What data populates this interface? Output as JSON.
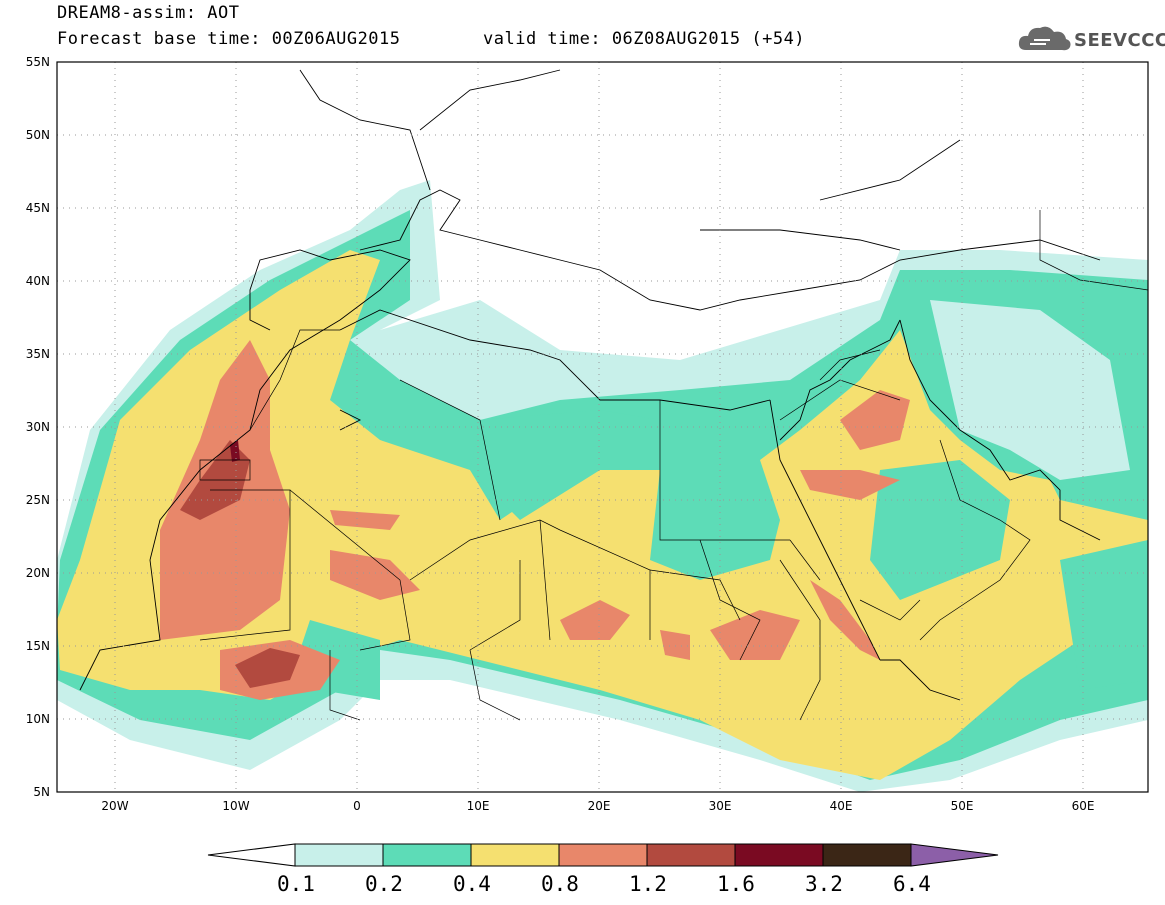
{
  "title": {
    "line1": "DREAM8-assim: AOT",
    "line2": "Forecast base time: 00Z06AUG2015",
    "valid": "valid time: 06Z08AUG2015 (+54)"
  },
  "logo": {
    "text": "SEEVCCC",
    "icon": "cloud-logo-icon"
  },
  "axes": {
    "lat_labels": [
      "55N",
      "50N",
      "45N",
      "40N",
      "35N",
      "30N",
      "25N",
      "20N",
      "15N",
      "10N",
      "5N"
    ],
    "lon_labels": [
      "20W",
      "10W",
      "0",
      "10E",
      "20E",
      "30E",
      "40E",
      "50E",
      "60E"
    ]
  },
  "colorbar": {
    "labels": [
      "0.1",
      "0.2",
      "0.4",
      "0.8",
      "1.2",
      "1.6",
      "3.2",
      "6.4"
    ],
    "colors": [
      "#ffffff",
      "#c8f0ea",
      "#5ddcb7",
      "#f5e070",
      "#e8876a",
      "#b24a3f",
      "#7a0a22",
      "#3b2616",
      "#8c5fa8"
    ]
  },
  "chart_data": {
    "type": "heatmap",
    "variable": "AOT",
    "xlim": [
      -25,
      65
    ],
    "ylim": [
      5,
      55
    ],
    "levels": [
      0.1,
      0.2,
      0.4,
      0.8,
      1.2,
      1.6,
      3.2,
      6.4
    ]
  }
}
